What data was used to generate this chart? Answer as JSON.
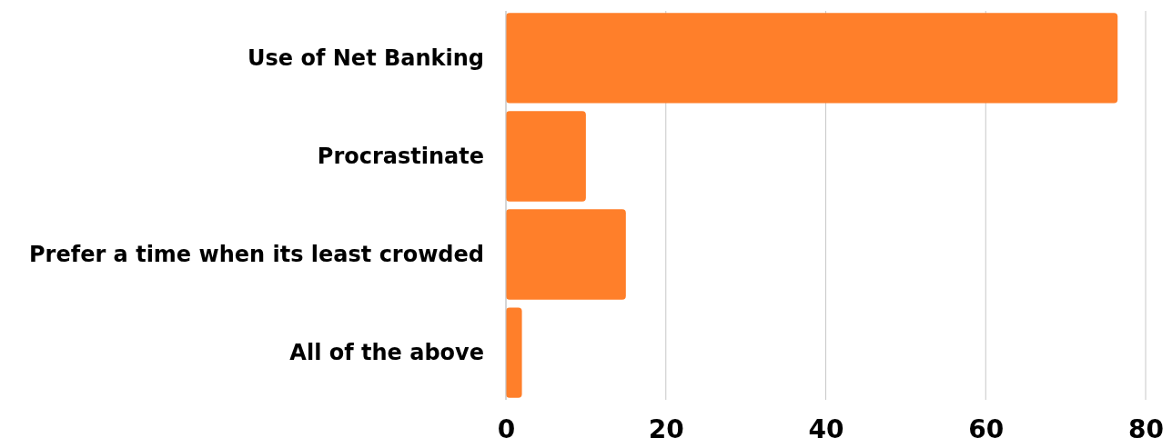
{
  "chart_data": {
    "type": "bar",
    "orientation": "horizontal",
    "categories": [
      "Use of Net Banking",
      "Procrastinate",
      "Prefer a time when its least crowded",
      "All of the above"
    ],
    "values": [
      76.5,
      10,
      15,
      2
    ],
    "color": "#ff7f2a",
    "xlim": [
      0,
      80
    ],
    "xticks": [
      0,
      20,
      40,
      60,
      80
    ],
    "grid": "x"
  }
}
